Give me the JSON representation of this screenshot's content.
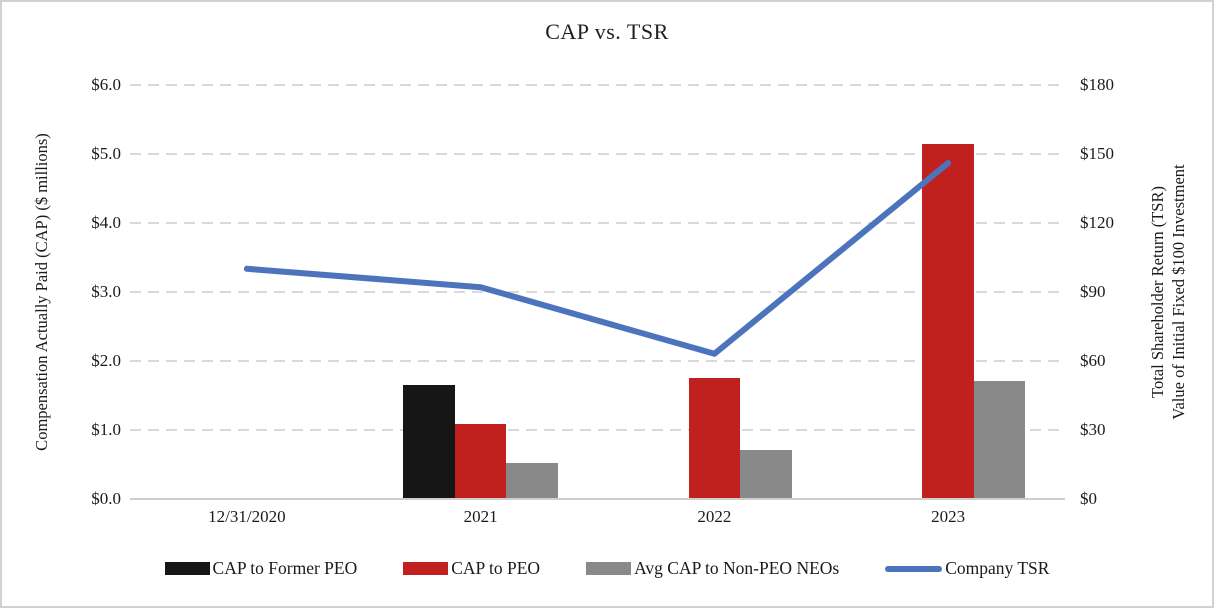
{
  "title": "CAP vs. TSR",
  "left_axis": {
    "title": "Compensation Actually Paid (CAP) ($ millions)",
    "ticks": [
      "$0.0",
      "$1.0",
      "$2.0",
      "$3.0",
      "$4.0",
      "$5.0",
      "$6.0"
    ]
  },
  "right_axis": {
    "title_line1": "Total Shareholder Return (TSR)",
    "title_line2": "Value of Initial Fixed $100 Investment",
    "ticks": [
      "$0",
      "$30",
      "$60",
      "$90",
      "$120",
      "$150",
      "$180"
    ]
  },
  "chart_data": {
    "type": "bar+line combo",
    "title": "CAP vs. TSR",
    "categories": [
      "12/31/2020",
      "2021",
      "2022",
      "2023"
    ],
    "left_ylim": [
      0,
      6
    ],
    "right_ylim": [
      0,
      180
    ],
    "grid": "horizontal dashed",
    "legend_position": "bottom",
    "series": [
      {
        "name": "CAP to Former PEO",
        "type": "bar",
        "axis": "left",
        "color": "#161616",
        "values": [
          null,
          1.65,
          null,
          null
        ]
      },
      {
        "name": "CAP to PEO",
        "type": "bar",
        "axis": "left",
        "color": "#c0201e",
        "values": [
          null,
          1.08,
          1.75,
          5.15
        ]
      },
      {
        "name": "Avg CAP to Non-PEO NEOs",
        "type": "bar",
        "axis": "left",
        "color": "#898989",
        "values": [
          null,
          0.52,
          0.7,
          1.7
        ]
      },
      {
        "name": "Company TSR",
        "type": "line",
        "axis": "right",
        "color": "#4c74bd",
        "values": [
          100,
          92,
          63,
          146
        ]
      }
    ]
  },
  "colors": {
    "gridline": "#d9d9d9",
    "axis_line": "#cfcdcd",
    "text": "#1a1a1a"
  }
}
